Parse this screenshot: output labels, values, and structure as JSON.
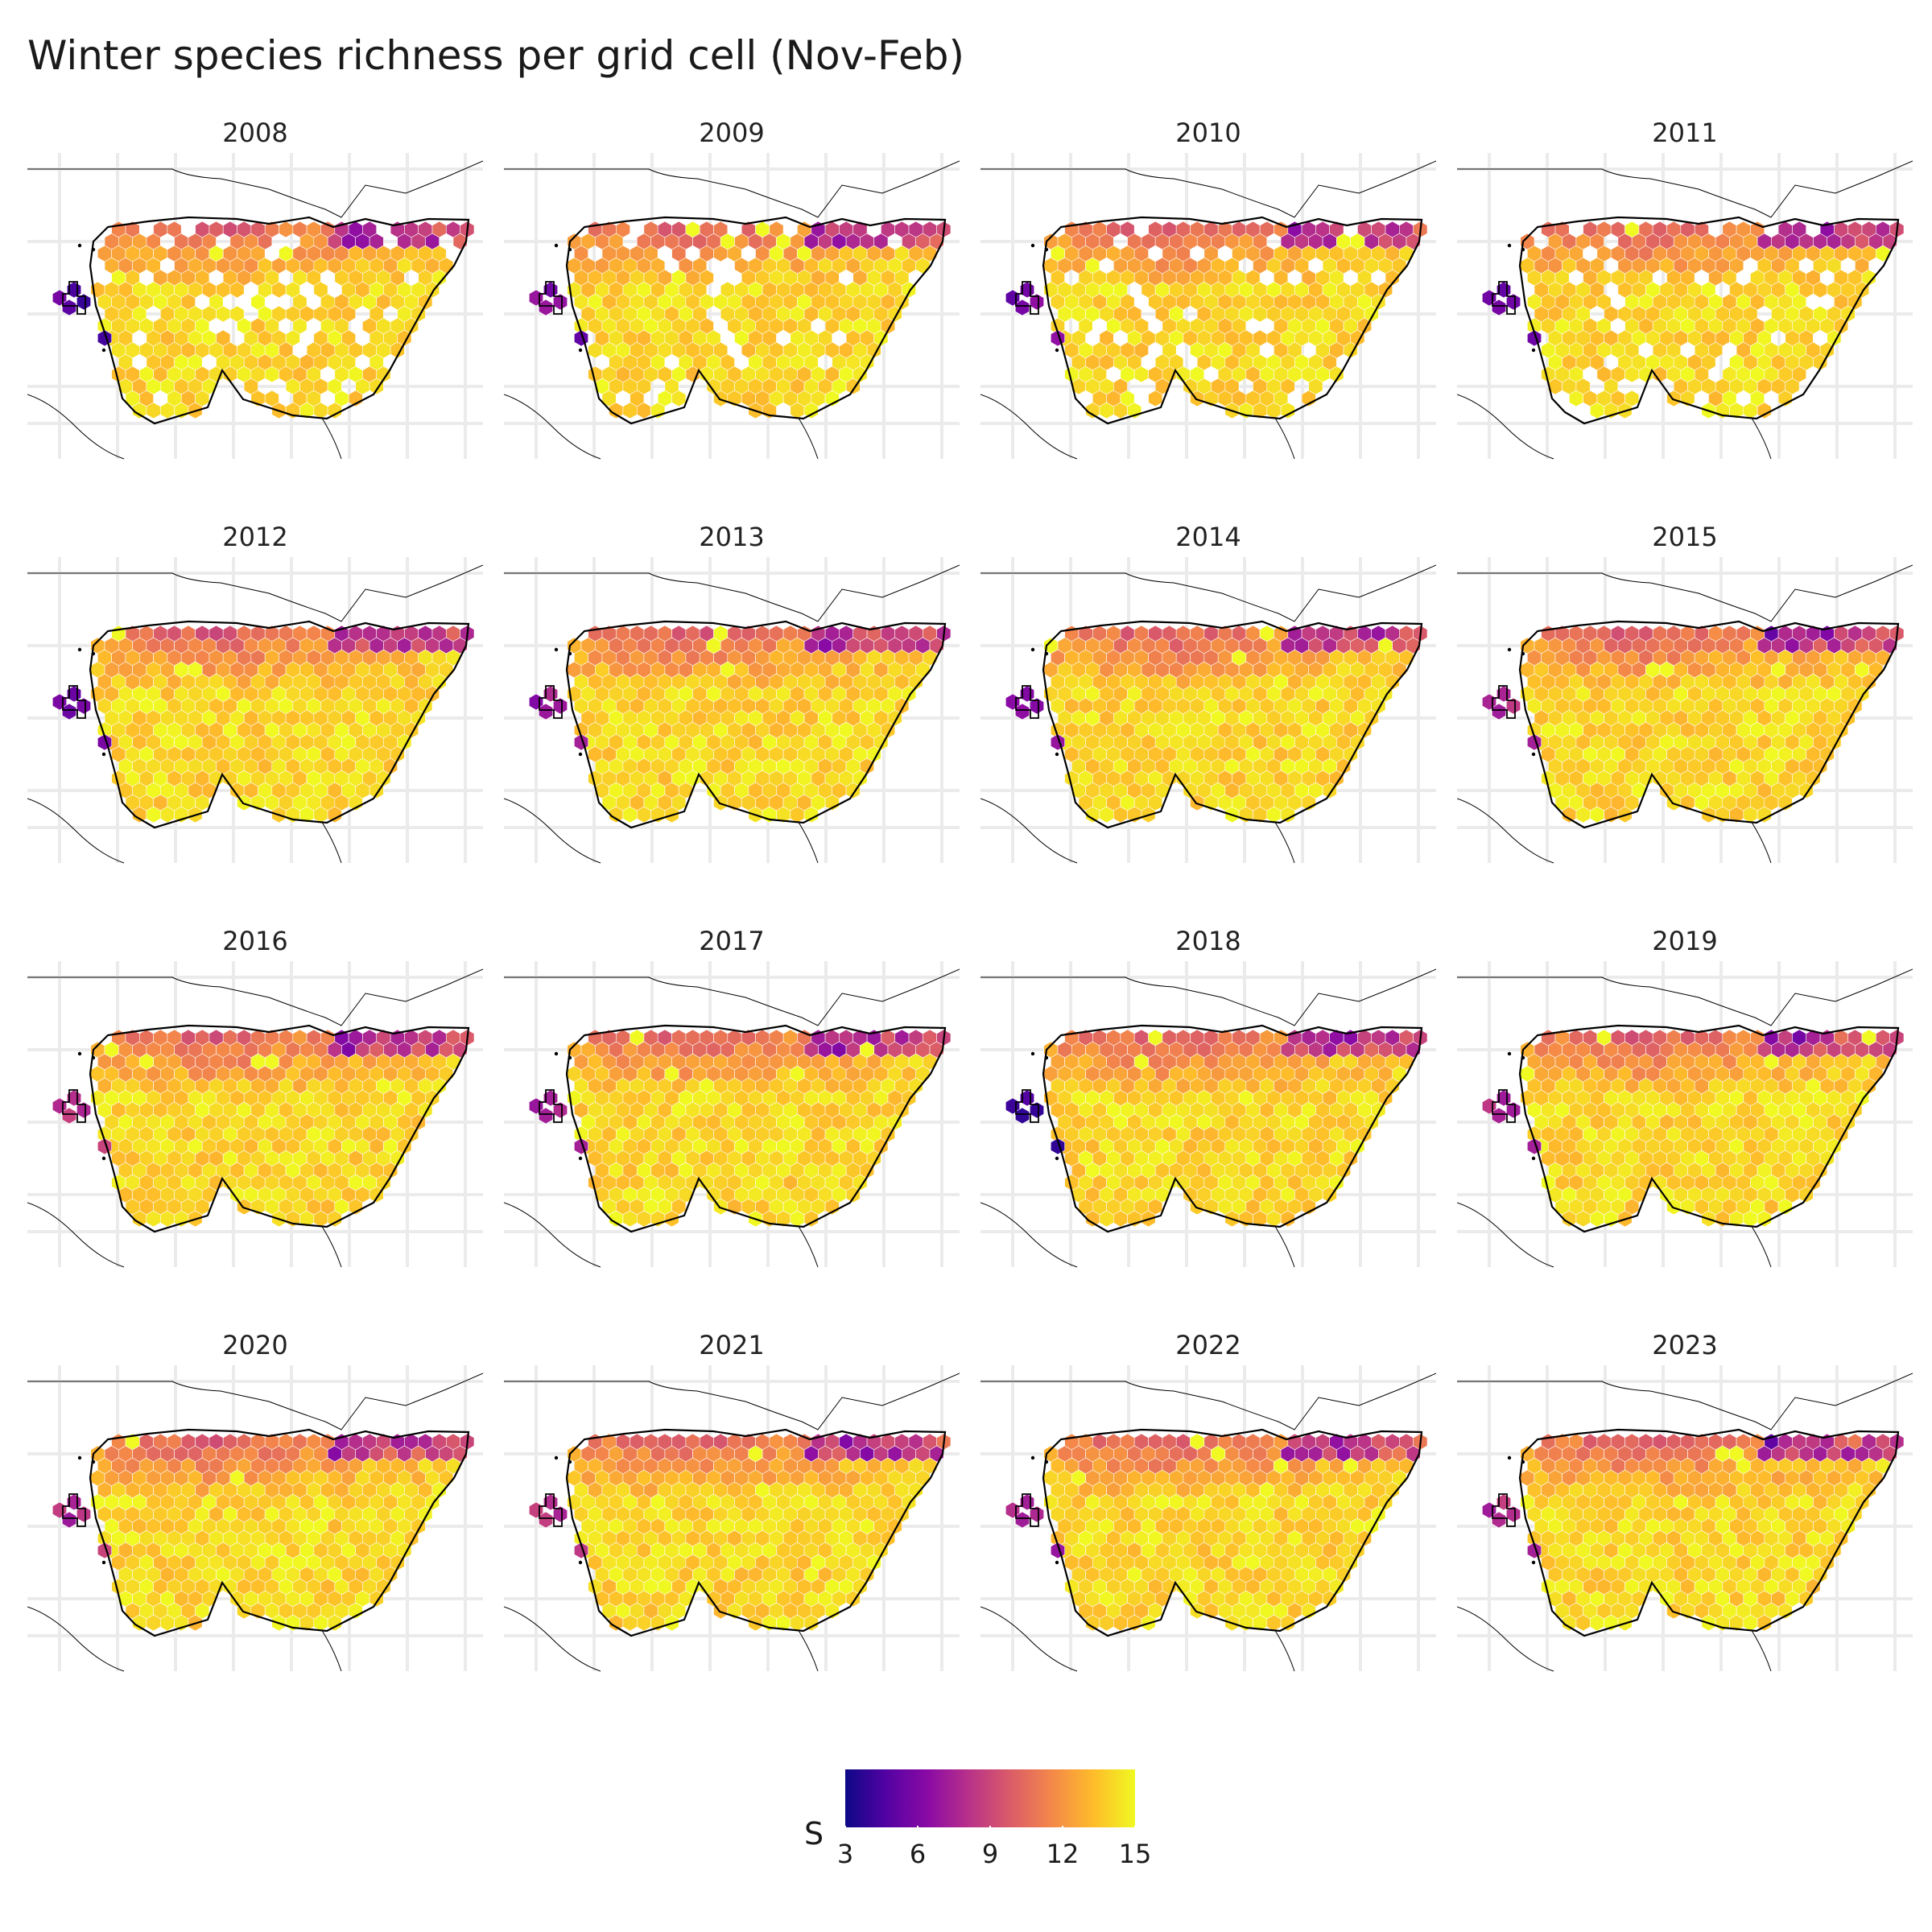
{
  "title": "Winter species richness per grid cell (Nov-Feb)",
  "chart_data": {
    "type": "heatmap",
    "title": "Winter species richness per grid cell (Nov-Feb)",
    "facets": [
      "2008",
      "2009",
      "2010",
      "2011",
      "2012",
      "2013",
      "2014",
      "2015",
      "2016",
      "2017",
      "2018",
      "2019",
      "2020",
      "2021",
      "2022",
      "2023"
    ],
    "fill_variable": "S",
    "colorscale": "plasma",
    "fill_range": [
      3,
      15
    ],
    "legend": {
      "title": "S",
      "ticks": [
        3,
        6,
        9,
        12,
        15
      ],
      "placement": "bottom"
    },
    "grid": true,
    "per_facet": [
      {
        "year": "2008",
        "typical_S": 14,
        "low_cells_NW_S": 4
      },
      {
        "year": "2009",
        "typical_S": 14,
        "low_cells_NW_S": 5
      },
      {
        "year": "2010",
        "typical_S": 14,
        "low_cells_NW_S": 5
      },
      {
        "year": "2011",
        "typical_S": 14,
        "low_cells_NW_S": 5
      },
      {
        "year": "2012",
        "typical_S": 14,
        "low_cells_NW_S": 4
      },
      {
        "year": "2013",
        "typical_S": 14,
        "low_cells_NW_S": 6
      },
      {
        "year": "2014",
        "typical_S": 14,
        "low_cells_NW_S": 6
      },
      {
        "year": "2015",
        "typical_S": 14,
        "low_cells_NW_S": 7
      },
      {
        "year": "2016",
        "typical_S": 14,
        "low_cells_NW_S": 7
      },
      {
        "year": "2017",
        "typical_S": 14,
        "low_cells_NW_S": 6
      },
      {
        "year": "2018",
        "typical_S": 14,
        "low_cells_NW_S": 3
      },
      {
        "year": "2019",
        "typical_S": 14,
        "low_cells_NW_S": 7
      },
      {
        "year": "2020",
        "typical_S": 14,
        "low_cells_NW_S": 7
      },
      {
        "year": "2021",
        "typical_S": 14,
        "low_cells_NW_S": 7
      },
      {
        "year": "2022",
        "typical_S": 14,
        "low_cells_NW_S": 6
      },
      {
        "year": "2023",
        "typical_S": 14,
        "low_cells_NW_S": 7
      }
    ]
  },
  "colors": {
    "plasma": [
      "#0d0887",
      "#5402a3",
      "#8b0aa5",
      "#b93289",
      "#db5c68",
      "#f48849",
      "#febc2a",
      "#f0f921"
    ],
    "grid": "#ebebeb",
    "outline": "#000000"
  }
}
